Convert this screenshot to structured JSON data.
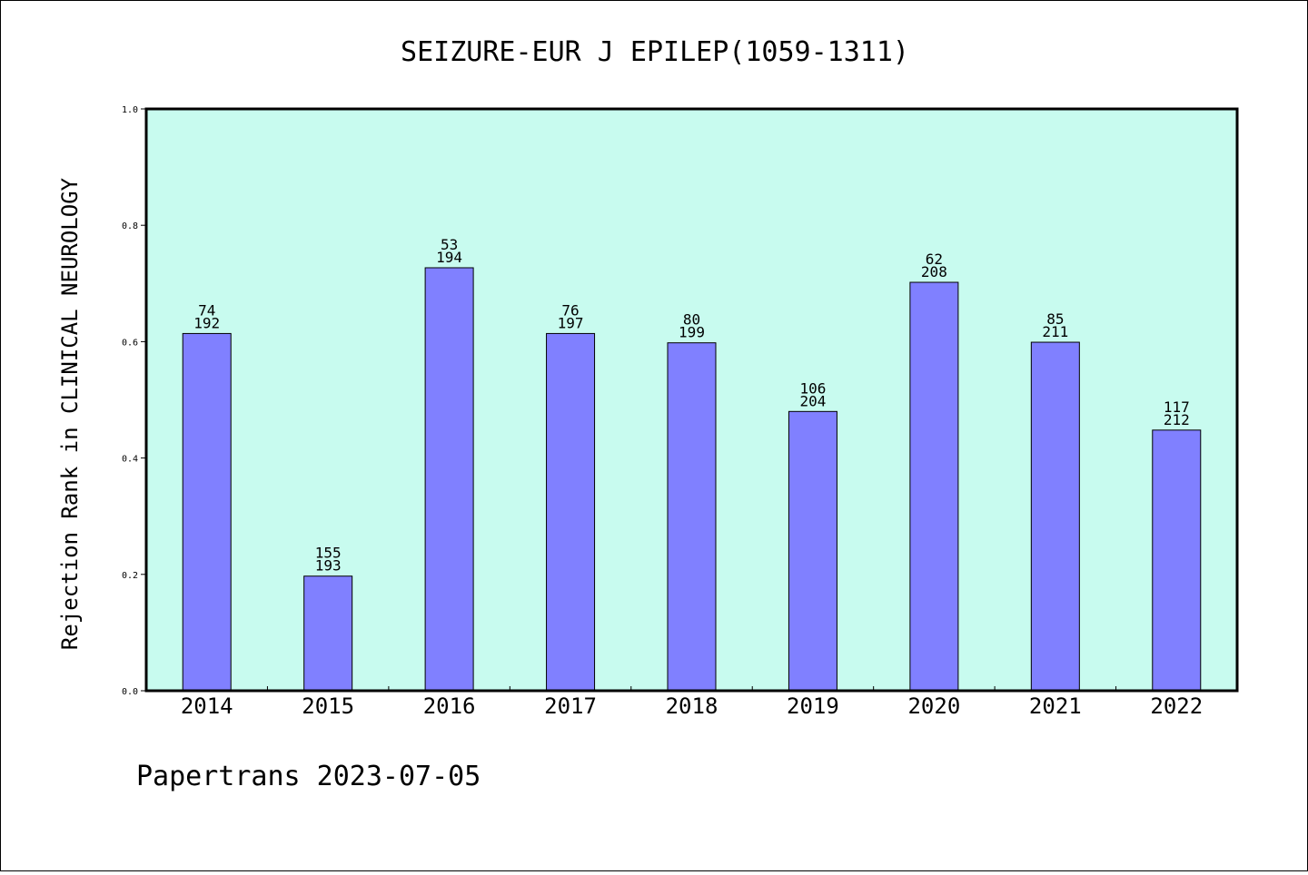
{
  "chart_data": {
    "type": "bar",
    "title": "SEIZURE-EUR J EPILEP(1059-1311)",
    "ylabel": "Rejection Rank in CLINICAL NEUROLOGY",
    "xlabel": "",
    "categories": [
      "2014",
      "2015",
      "2016",
      "2017",
      "2018",
      "2019",
      "2020",
      "2021",
      "2022"
    ],
    "values": [
      0.614,
      0.197,
      0.727,
      0.614,
      0.598,
      0.48,
      0.702,
      0.599,
      0.448
    ],
    "bar_labels_top": [
      "74",
      "155",
      "53",
      "76",
      "80",
      "106",
      "62",
      "85",
      "117"
    ],
    "bar_labels_bottom": [
      "192",
      "193",
      "194",
      "197",
      "199",
      "204",
      "208",
      "211",
      "212"
    ],
    "ylim": [
      0,
      1.0
    ],
    "yticks": [
      "0.0",
      "0.2",
      "0.4",
      "0.6",
      "0.8",
      "1.0"
    ],
    "grid": false,
    "colors": {
      "plot_background": "#c8fbef",
      "bar_fill": "#8080ff",
      "bar_edge": "#000000"
    }
  },
  "footer": "Papertrans 2023-07-05"
}
